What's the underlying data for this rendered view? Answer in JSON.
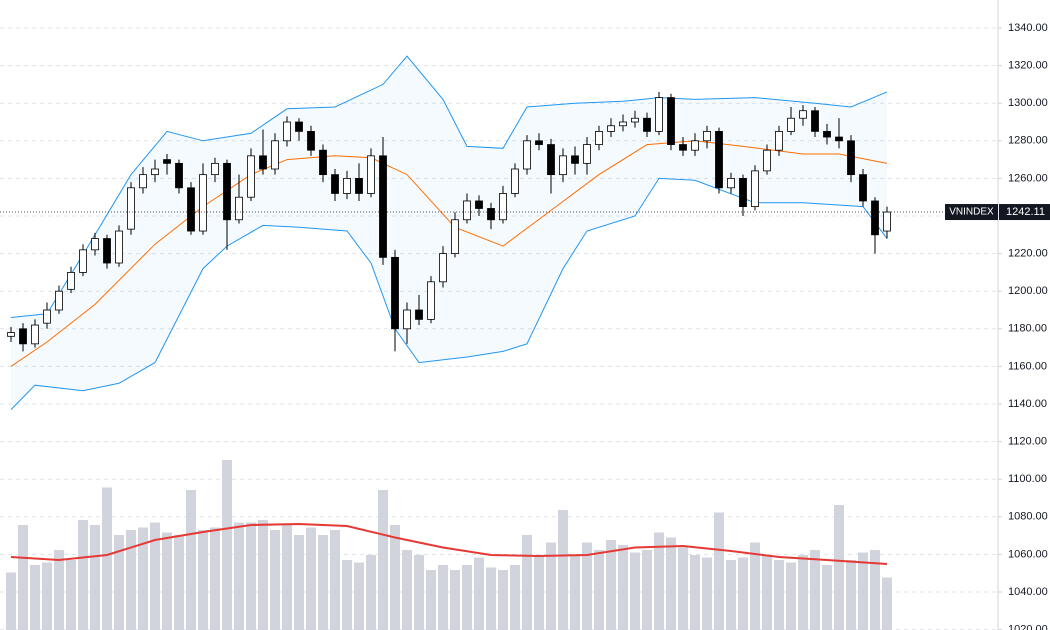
{
  "chart_data": {
    "type": "candlestick",
    "symbol": "VNINDEX",
    "open": [
      1176,
      1180,
      1172,
      1183,
      1190,
      1201,
      1210,
      1222,
      1228,
      1215,
      1233,
      1255,
      1262,
      1270,
      1268,
      1255,
      1232,
      1262,
      1268,
      1238,
      1250,
      1272,
      1265,
      1280,
      1290,
      1285,
      1275,
      1262,
      1252,
      1260,
      1252,
      1272,
      1218,
      1180,
      1190,
      1185,
      1205,
      1220,
      1238,
      1248,
      1244,
      1238,
      1252,
      1265,
      1280,
      1278,
      1262,
      1272,
      1268,
      1278,
      1285,
      1288,
      1290,
      1292,
      1285,
      1303,
      1278,
      1275,
      1280,
      1285,
      1255,
      1260,
      1245,
      1264,
      1275,
      1285,
      1292,
      1296,
      1285,
      1282,
      1280,
      1262,
      1248,
      1232
    ],
    "high": [
      1181,
      1183,
      1185,
      1194,
      1203,
      1213,
      1225,
      1231,
      1230,
      1235,
      1258,
      1266,
      1270,
      1273,
      1270,
      1258,
      1268,
      1271,
      1270,
      1262,
      1276,
      1286,
      1284,
      1293,
      1292,
      1288,
      1278,
      1265,
      1264,
      1268,
      1276,
      1282,
      1222,
      1194,
      1198,
      1208,
      1224,
      1242,
      1252,
      1251,
      1247,
      1256,
      1268,
      1283,
      1284,
      1281,
      1276,
      1277,
      1282,
      1288,
      1292,
      1294,
      1296,
      1295,
      1306,
      1305,
      1282,
      1284,
      1288,
      1287,
      1263,
      1262,
      1267,
      1278,
      1288,
      1298,
      1299,
      1298,
      1289,
      1292,
      1283,
      1265,
      1250,
      1245
    ],
    "low": [
      1173,
      1168,
      1170,
      1180,
      1188,
      1199,
      1208,
      1219,
      1212,
      1213,
      1230,
      1252,
      1258,
      1262,
      1252,
      1230,
      1230,
      1258,
      1222,
      1236,
      1248,
      1262,
      1262,
      1277,
      1280,
      1272,
      1258,
      1248,
      1249,
      1248,
      1250,
      1214,
      1168,
      1172,
      1182,
      1183,
      1202,
      1218,
      1236,
      1240,
      1233,
      1236,
      1250,
      1262,
      1275,
      1252,
      1258,
      1262,
      1262,
      1275,
      1282,
      1285,
      1287,
      1282,
      1283,
      1275,
      1272,
      1272,
      1276,
      1252,
      1252,
      1240,
      1243,
      1262,
      1272,
      1283,
      1288,
      1282,
      1278,
      1276,
      1258,
      1245,
      1220,
      1228
    ],
    "close": [
      1178,
      1172,
      1182,
      1190,
      1200,
      1210,
      1222,
      1228,
      1215,
      1232,
      1255,
      1262,
      1265,
      1268,
      1255,
      1232,
      1262,
      1268,
      1238,
      1250,
      1272,
      1265,
      1280,
      1290,
      1285,
      1275,
      1262,
      1252,
      1260,
      1252,
      1272,
      1218,
      1180,
      1190,
      1185,
      1205,
      1220,
      1238,
      1248,
      1244,
      1238,
      1252,
      1265,
      1280,
      1278,
      1262,
      1272,
      1268,
      1278,
      1285,
      1288,
      1290,
      1292,
      1285,
      1303,
      1278,
      1275,
      1280,
      1285,
      1255,
      1260,
      1245,
      1264,
      1275,
      1285,
      1292,
      1296,
      1285,
      1282,
      1280,
      1262,
      1248,
      1230,
      1242.11
    ],
    "volume": [
      115,
      210,
      130,
      135,
      160,
      140,
      220,
      210,
      285,
      190,
      200,
      205,
      215,
      195,
      190,
      280,
      200,
      205,
      340,
      215,
      215,
      220,
      200,
      210,
      190,
      205,
      190,
      200,
      140,
      135,
      150,
      280,
      210,
      160,
      150,
      120,
      130,
      120,
      130,
      145,
      125,
      120,
      130,
      190,
      150,
      175,
      240,
      150,
      175,
      160,
      180,
      170,
      155,
      160,
      195,
      185,
      165,
      150,
      145,
      235,
      140,
      145,
      175,
      150,
      140,
      135,
      150,
      160,
      130,
      250,
      140,
      155,
      160,
      105
    ],
    "vlim": [
      0,
      400
    ],
    "bb_upper": {
      "color": "#2196f3",
      "x": [
        0,
        3,
        7,
        10,
        13,
        16,
        20,
        23,
        27,
        31,
        33,
        36,
        38,
        41,
        43,
        47,
        51,
        54,
        57,
        62,
        67,
        70,
        73
      ],
      "values": [
        1186,
        1188,
        1230,
        1262,
        1285,
        1280,
        1284,
        1297,
        1298,
        1310,
        1325,
        1302,
        1277,
        1276,
        1298,
        1300,
        1301,
        1303,
        1302,
        1303,
        1300,
        1298,
        1306
      ]
    },
    "bb_lower": {
      "color": "#2196f3",
      "x": [
        0,
        2,
        6,
        9,
        12,
        16,
        18,
        21,
        24,
        28,
        30,
        32,
        34,
        38,
        41,
        43,
        46,
        48,
        52,
        54,
        57,
        62,
        66,
        71,
        73
      ],
      "values": [
        1137,
        1150,
        1147,
        1151,
        1162,
        1212,
        1224,
        1235,
        1234,
        1232,
        1215,
        1180,
        1162,
        1165,
        1168,
        1172,
        1212,
        1232,
        1240,
        1260,
        1259,
        1247,
        1247,
        1245,
        1228
      ]
    },
    "bb_basis": {
      "color": "#ff6d00",
      "x": [
        0,
        3,
        7,
        12,
        16,
        20,
        23,
        27,
        30,
        33,
        37,
        41,
        45,
        49,
        53,
        57,
        61,
        66,
        69,
        73
      ],
      "values": [
        1160,
        1173,
        1193,
        1225,
        1245,
        1262,
        1270,
        1272,
        1271,
        1262,
        1234,
        1224,
        1243,
        1262,
        1278,
        1280,
        1277,
        1273,
        1273,
        1268
      ]
    },
    "volume_ma": {
      "color": "#e53935",
      "x": [
        0,
        4,
        8,
        12,
        16,
        20,
        24,
        28,
        32,
        36,
        40,
        44,
        48,
        52,
        56,
        60,
        64,
        68,
        73
      ],
      "values": [
        146,
        140,
        150,
        180,
        196,
        210,
        212,
        208,
        185,
        165,
        150,
        148,
        150,
        165,
        168,
        158,
        146,
        140,
        132
      ]
    },
    "ylim": [
      1020,
      1340
    ],
    "yticks": [
      {
        "value": 1020,
        "label": "1020.00"
      },
      {
        "value": 1040,
        "label": "1040.00"
      },
      {
        "value": 1060,
        "label": "1060.00"
      },
      {
        "value": 1080,
        "label": "1080.00"
      },
      {
        "value": 1100,
        "label": "1100.00"
      },
      {
        "value": 1120,
        "label": "1120.00"
      },
      {
        "value": 1140,
        "label": "1140.00"
      },
      {
        "value": 1160,
        "label": "1160.00"
      },
      {
        "value": 1180,
        "label": "1180.00"
      },
      {
        "value": 1200,
        "label": "1200.00"
      },
      {
        "value": 1220,
        "label": "1220.00"
      },
      {
        "value": 1240,
        "label": "1240.00"
      },
      {
        "value": 1260,
        "label": "1260.00"
      },
      {
        "value": 1280,
        "label": "1280.00"
      },
      {
        "value": 1300,
        "label": "1300.00"
      },
      {
        "value": 1320,
        "label": "1320.00"
      },
      {
        "value": 1340,
        "label": "1340.00"
      }
    ],
    "grid": true
  }
}
